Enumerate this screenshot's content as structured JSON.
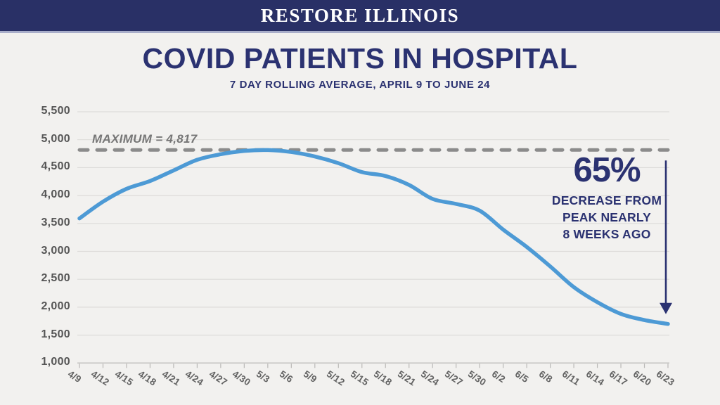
{
  "banner": {
    "title": "RESTORE ILLINOIS"
  },
  "chart_data": {
    "type": "line",
    "title": "COVID PATIENTS IN HOSPITAL",
    "subtitle": "7 DAY ROLLING AVERAGE, APRIL 9 TO JUNE 24",
    "categories": [
      "4/9",
      "4/12",
      "4/15",
      "4/18",
      "4/21",
      "4/24",
      "4/27",
      "4/30",
      "5/3",
      "5/6",
      "5/9",
      "5/12",
      "5/15",
      "5/18",
      "5/21",
      "5/24",
      "5/27",
      "5/30",
      "6/2",
      "6/5",
      "6/8",
      "6/11",
      "6/14",
      "6/17",
      "6/20",
      "6/23"
    ],
    "series": [
      {
        "name": "COVID patients in hospital, 7-day rolling average",
        "values": [
          3590,
          3890,
          4120,
          4260,
          4450,
          4640,
          4740,
          4800,
          4815,
          4780,
          4700,
          4580,
          4420,
          4350,
          4190,
          3940,
          3850,
          3730,
          3390,
          3080,
          2730,
          2360,
          2090,
          1880,
          1770,
          1700
        ]
      }
    ],
    "ylim": [
      1000,
      5500
    ],
    "yticks": [
      {
        "value": 5500,
        "label": "5,500"
      },
      {
        "value": 5000,
        "label": "5,000"
      },
      {
        "value": 4500,
        "label": "4,500"
      },
      {
        "value": 4000,
        "label": "4,000"
      },
      {
        "value": 3500,
        "label": "3,500"
      },
      {
        "value": 3000,
        "label": "3,000"
      },
      {
        "value": 2500,
        "label": "2,500"
      },
      {
        "value": 2000,
        "label": "2,000"
      },
      {
        "value": 1500,
        "label": "1,500"
      },
      {
        "value": 1000,
        "label": "1,000"
      }
    ],
    "grid": true,
    "legend": "none",
    "max_line": {
      "value": 4817,
      "label": "MAXIMUM = 4,817"
    },
    "annotation": {
      "headline": "65%",
      "lines": [
        "DECREASE FROM",
        "PEAK NEARLY",
        "8 WEEKS AGO"
      ]
    },
    "colors": {
      "line_blue": "#4d9ad5",
      "dash_gray": "#8b8b8b",
      "navy": "#2b3271",
      "banner_navy": "#293066",
      "gridline": "#dddcda",
      "axis": "#c2c1bf"
    }
  }
}
